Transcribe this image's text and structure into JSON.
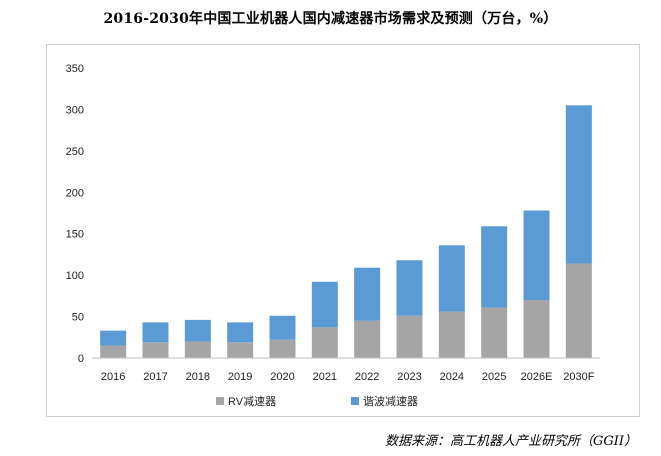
{
  "source_note": "数据来源：高工机器人产业研究所（GGII）",
  "colors": {
    "rv": "#a5a5a5",
    "harmonic": "#5b9bd5",
    "axis": "#bfbfbf"
  },
  "chart_data": {
    "type": "bar",
    "stacked": true,
    "title": "2016-2030年中国工业机器人国内减速器市场需求及预测（万台，%）",
    "xlabel": "",
    "ylabel": "",
    "ylim": [
      0,
      350
    ],
    "yticks": [
      0,
      50,
      100,
      150,
      200,
      250,
      300,
      350
    ],
    "categories": [
      "2016",
      "2017",
      "2018",
      "2019",
      "2020",
      "2021",
      "2022",
      "2023",
      "2024",
      "2025",
      "2026E",
      "2030F"
    ],
    "series": [
      {
        "name": "RV减速器",
        "values": [
          15,
          19,
          20,
          19,
          22,
          37,
          45,
          51,
          56,
          61,
          70,
          114
        ]
      },
      {
        "name": "谐波减速器",
        "values": [
          18,
          24,
          26,
          24,
          29,
          55,
          64,
          67,
          80,
          98,
          108,
          191
        ]
      }
    ],
    "grid": false,
    "legend": "bottom"
  }
}
